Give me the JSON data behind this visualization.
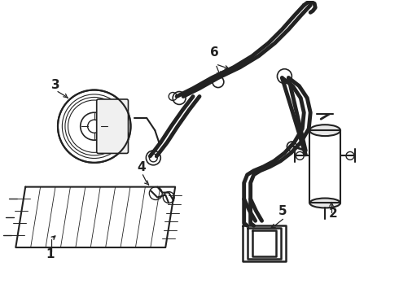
{
  "background_color": "#ffffff",
  "line_color": "#222222",
  "label_color": "#000000",
  "label_fontsize": 10,
  "fig_width": 4.9,
  "fig_height": 3.6,
  "dpi": 100
}
